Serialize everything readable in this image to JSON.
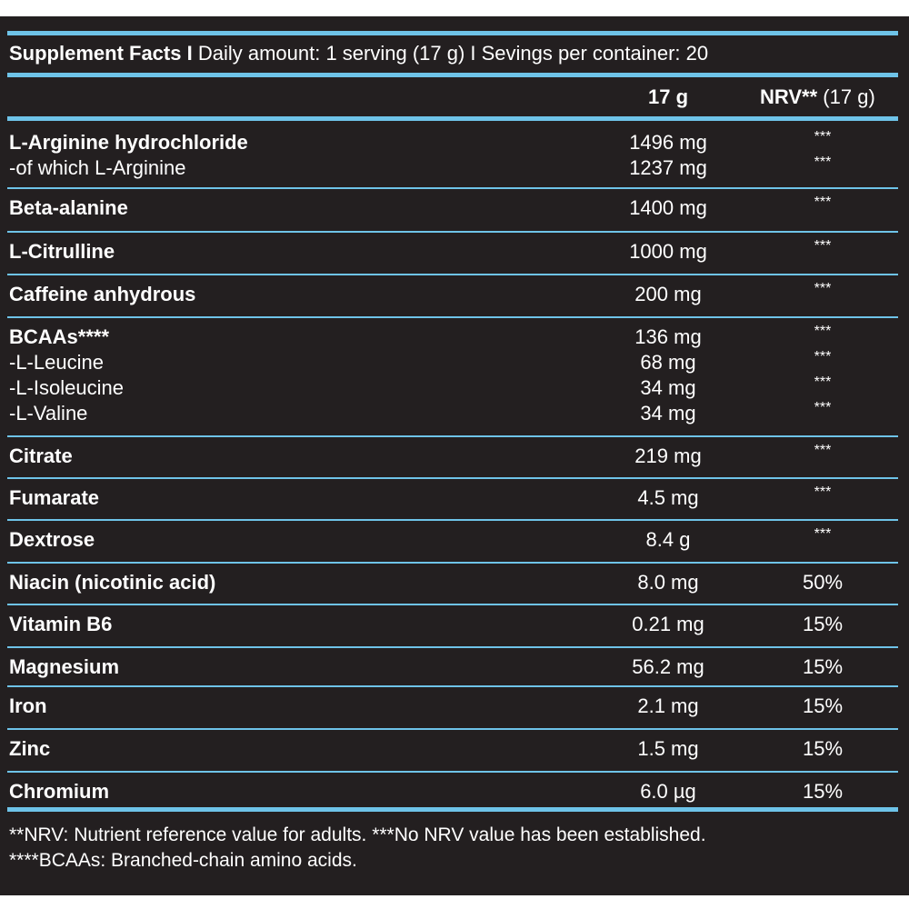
{
  "label": {
    "header": {
      "lead": "Supplement Facts I",
      "rest": " Daily amount: 1 serving (17 g) I Sevings per container: 20"
    },
    "columns": {
      "amount": "17 g",
      "nrv_bold": "NRV**",
      "nrv_light": " (17 g)"
    },
    "rows": [
      {
        "lines": [
          {
            "name": "L-Arginine hydrochloride",
            "bold": true,
            "amount": "1496 mg",
            "nrv": "***"
          },
          {
            "name": "-of which L-Arginine",
            "bold": false,
            "amount": "1237 mg",
            "nrv": "***"
          }
        ]
      },
      {
        "lines": [
          {
            "name": "Beta-alanine",
            "bold": true,
            "amount": "1400 mg",
            "nrv": "***"
          }
        ]
      },
      {
        "lines": [
          {
            "name": "L-Citrulline",
            "bold": true,
            "amount": "1000 mg",
            "nrv": "***"
          }
        ]
      },
      {
        "lines": [
          {
            "name": "Caffeine anhydrous",
            "bold": true,
            "amount": "200 mg",
            "nrv": "***"
          }
        ]
      },
      {
        "lines": [
          {
            "name": "BCAAs****",
            "bold": true,
            "amount": "136 mg",
            "nrv": "***"
          },
          {
            "name": "-L-Leucine",
            "bold": false,
            "amount": "68 mg",
            "nrv": "***"
          },
          {
            "name": "-L-Isoleucine",
            "bold": false,
            "amount": "34 mg",
            "nrv": "***"
          },
          {
            "name": "-L-Valine",
            "bold": false,
            "amount": "34 mg",
            "nrv": "***"
          }
        ]
      },
      {
        "lines": [
          {
            "name": "Citrate",
            "bold": true,
            "amount": "219 mg",
            "nrv": "***"
          }
        ]
      },
      {
        "lines": [
          {
            "name": "Fumarate",
            "bold": true,
            "amount": "4.5 mg",
            "nrv": "***"
          }
        ]
      },
      {
        "lines": [
          {
            "name": "Dextrose",
            "bold": true,
            "amount": "8.4 g",
            "nrv": "***"
          }
        ]
      },
      {
        "lines": [
          {
            "name": "Niacin (nicotinic acid)",
            "bold": true,
            "amount": "8.0 mg",
            "nrv": "50%"
          }
        ]
      },
      {
        "lines": [
          {
            "name": "Vitamin B6",
            "bold": true,
            "amount": "0.21 mg",
            "nrv": "15%"
          }
        ]
      },
      {
        "lines": [
          {
            "name": "Magnesium",
            "bold": true,
            "amount": "56.2 mg",
            "nrv": "15%"
          }
        ]
      },
      {
        "lines": [
          {
            "name": "Iron",
            "bold": true,
            "amount": "2.1 mg",
            "nrv": "15%"
          }
        ]
      },
      {
        "lines": [
          {
            "name": "Zinc",
            "bold": true,
            "amount": "1.5 mg",
            "nrv": "15%"
          }
        ]
      },
      {
        "lines": [
          {
            "name": "Chromium",
            "bold": true,
            "amount": "6.0 µg",
            "nrv": "15%"
          }
        ]
      }
    ],
    "footnotes": [
      "**NRV: Nutrient reference value for adults. ***No NRV value has been established.",
      "****BCAAs: Branched-chain amino acids."
    ],
    "colors": {
      "background": "#231f20",
      "rule": "#6ec3e8",
      "text": "#ffffff"
    }
  }
}
